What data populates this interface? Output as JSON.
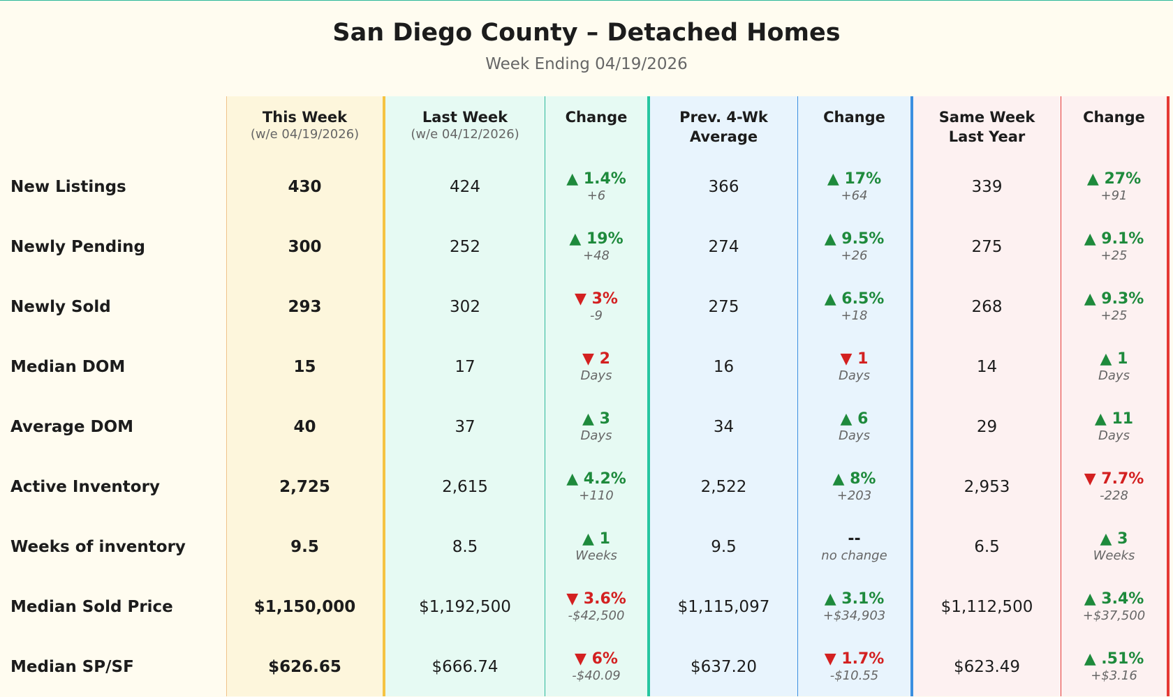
{
  "header": {
    "title": "San Diego County – Detached Homes",
    "subtitle": "Week Ending 04/19/2026"
  },
  "table": {
    "columns": [
      {
        "title": "This Week",
        "subtitle": "(w/e 04/19/2026)"
      },
      {
        "title": "Last Week",
        "subtitle": "(w/e 04/12/2026)"
      },
      {
        "title": "Change"
      },
      {
        "title": "Prev. 4-Wk Average"
      },
      {
        "title": "Change"
      },
      {
        "title": "Same Week Last Year"
      },
      {
        "title": "Change"
      }
    ],
    "rows": [
      {
        "label": "New Listings",
        "cells": [
          "430",
          "424",
          {
            "change": "▲ 1.4%",
            "detail": "+6"
          },
          "366",
          {
            "change": "▲ 17%",
            "detail": "+64"
          },
          "339",
          {
            "change": "▲ 27%",
            "detail": "+91"
          }
        ]
      },
      {
        "label": "Newly Pending",
        "cells": [
          "300",
          "252",
          {
            "change": "▲ 19%",
            "detail": "+48"
          },
          "274",
          {
            "change": "▲ 9.5%",
            "detail": "+26"
          },
          "275",
          {
            "change": "▲ 9.1%",
            "detail": "+25"
          }
        ]
      },
      {
        "label": "Newly Sold",
        "cells": [
          "293",
          "302",
          {
            "change": "▼ 3%",
            "detail": "-9"
          },
          "275",
          {
            "change": "▲ 6.5%",
            "detail": "+18"
          },
          "268",
          {
            "change": "▲ 9.3%",
            "detail": "+25"
          }
        ]
      },
      {
        "label": "Median DOM",
        "cells": [
          "15",
          "17",
          {
            "change": "▼ 2",
            "detail": "Days"
          },
          "16",
          {
            "change": "▼ 1",
            "detail": "Days"
          },
          "14",
          {
            "change": "▲ 1",
            "detail": "Days"
          }
        ]
      },
      {
        "label": "Average DOM",
        "cells": [
          "40",
          "37",
          {
            "change": "▲ 3",
            "detail": "Days"
          },
          "34",
          {
            "change": "▲ 6",
            "detail": "Days"
          },
          "29",
          {
            "change": "▲ 11",
            "detail": "Days"
          }
        ]
      },
      {
        "label": "Active Inventory",
        "cells": [
          "2,725",
          "2,615",
          {
            "change": "▲ 4.2%",
            "detail": "+110"
          },
          "2,522",
          {
            "change": "▲ 8%",
            "detail": "+203"
          },
          "2,953",
          {
            "change": "▼ 7.7%",
            "detail": "-228"
          }
        ]
      },
      {
        "label": "Weeks of inventory",
        "cells": [
          "9.5",
          "8.5",
          {
            "change": "▲ 1",
            "detail": "Weeks"
          },
          "9.5",
          {
            "change": "--",
            "detail": "no change"
          },
          "6.5",
          {
            "change": "▲ 3",
            "detail": "Weeks"
          }
        ]
      },
      {
        "label": "Median Sold Price",
        "cells": [
          "$1,150,000",
          "$1,192,500",
          {
            "change": "▼ 3.6%",
            "detail": "-$42,500"
          },
          "$1,115,097",
          {
            "change": "▲ 3.1%",
            "detail": "+$34,903"
          },
          "$1,112,500",
          {
            "change": "▲ 3.4%",
            "detail": "+$37,500"
          }
        ]
      },
      {
        "label": "Median SP/SF",
        "cells": [
          "$626.65",
          "$666.74",
          {
            "change": "▼ 6%",
            "detail": "-$40.09"
          },
          "$637.20",
          {
            "change": "▼ 1.7%",
            "detail": "-$10.55"
          },
          "$623.49",
          {
            "change": "▲ .51%",
            "detail": "+$3.16"
          }
        ]
      }
    ]
  }
}
